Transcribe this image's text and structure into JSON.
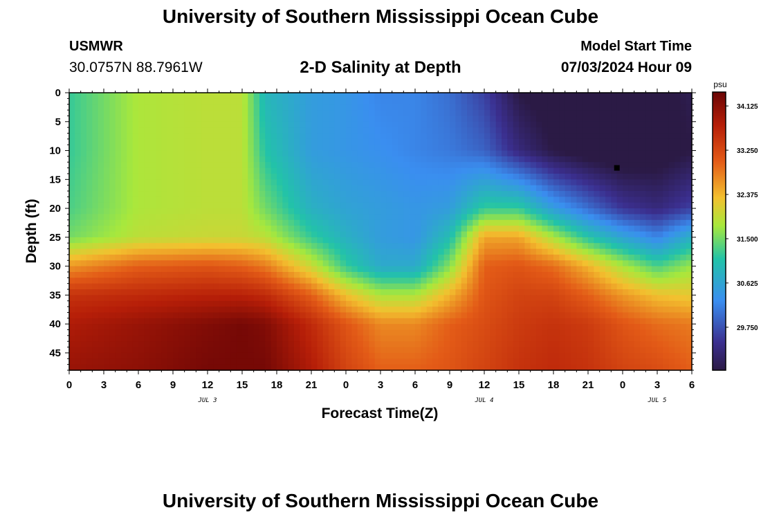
{
  "header": {
    "title": "University of Southern Mississippi Ocean Cube",
    "station": "USMWR",
    "coordinates": "30.0757N  88.7961W",
    "plot_title": "2-D Salinity at Depth",
    "model_start_label": "Model Start Time",
    "model_start_value": "07/03/2024 Hour 09"
  },
  "footer": {
    "title": "University of Southern Mississippi Ocean Cube"
  },
  "colors": {
    "background": "#ffffff",
    "axis": "#000000",
    "marker": "#000000"
  },
  "chart_data": {
    "type": "heatmap",
    "variable": "salinity",
    "unit": "psu",
    "xlabel": "Forecast Time(Z)",
    "ylabel": "Depth (ft)",
    "x_tick_labels": [
      "0",
      "3",
      "6",
      "9",
      "12",
      "15",
      "18",
      "21",
      "0",
      "3",
      "6",
      "9",
      "12",
      "15",
      "18",
      "21",
      "0",
      "3",
      "6"
    ],
    "x_range_hours": [
      0,
      54
    ],
    "date_labels": [
      {
        "text": "JUL 3",
        "hour": 12
      },
      {
        "text": "JUL 4",
        "hour": 36
      },
      {
        "text": "JUL 5",
        "hour": 51
      }
    ],
    "y_tick_labels": [
      "0",
      "5",
      "10",
      "15",
      "20",
      "25",
      "30",
      "35",
      "40",
      "45"
    ],
    "y_range_ft": [
      0,
      48
    ],
    "colorbar": {
      "unit_label": "psu",
      "tick_labels": [
        "34.125",
        "33.250",
        "32.375",
        "31.500",
        "30.625",
        "29.750"
      ],
      "range": [
        28.9,
        34.4
      ]
    },
    "value_scale": [
      28.9,
      34.4
    ],
    "depths_ft": [
      0,
      10,
      20,
      25,
      30,
      35,
      40,
      48
    ],
    "hours": [
      0,
      6,
      12,
      15,
      17,
      21,
      24,
      27,
      30,
      33,
      36,
      39,
      42,
      45,
      48,
      51,
      54
    ],
    "values": [
      [
        31.2,
        31.8,
        31.9,
        31.9,
        30.9,
        30.5,
        30.4,
        30.2,
        30.2,
        30.0,
        29.6,
        28.9,
        28.7,
        28.6,
        28.6,
        28.8,
        29.0
      ],
      [
        31.2,
        31.8,
        31.9,
        31.9,
        31.1,
        30.5,
        30.4,
        30.3,
        30.2,
        30.1,
        29.9,
        29.3,
        28.9,
        28.7,
        28.6,
        28.7,
        28.9
      ],
      [
        31.3,
        31.8,
        31.9,
        31.9,
        31.5,
        30.8,
        30.6,
        30.5,
        30.4,
        30.5,
        31.2,
        31.2,
        30.5,
        30.0,
        29.5,
        29.3,
        29.6
      ],
      [
        31.5,
        31.9,
        32.0,
        32.0,
        31.9,
        31.2,
        30.8,
        30.5,
        30.4,
        31.0,
        32.5,
        32.5,
        31.8,
        31.1,
        30.6,
        30.2,
        30.8
      ],
      [
        32.6,
        33.0,
        33.1,
        33.0,
        32.8,
        32.0,
        31.2,
        30.7,
        30.7,
        31.6,
        33.0,
        33.1,
        32.9,
        32.4,
        31.8,
        31.3,
        31.7
      ],
      [
        33.5,
        33.6,
        33.7,
        33.7,
        33.6,
        33.0,
        32.3,
        31.8,
        31.8,
        32.4,
        33.1,
        33.3,
        33.3,
        33.0,
        32.6,
        32.3,
        32.2
      ],
      [
        33.8,
        34.0,
        34.2,
        34.3,
        34.2,
        33.6,
        33.1,
        32.7,
        32.7,
        33.0,
        33.2,
        33.4,
        33.5,
        33.4,
        33.1,
        32.9,
        32.8
      ],
      [
        34.0,
        34.1,
        34.3,
        34.3,
        34.3,
        33.8,
        33.3,
        33.0,
        33.0,
        33.1,
        33.3,
        33.5,
        33.6,
        33.5,
        33.3,
        33.2,
        33.0
      ]
    ],
    "marker": {
      "hour": 47.5,
      "depth_ft": 13
    }
  }
}
